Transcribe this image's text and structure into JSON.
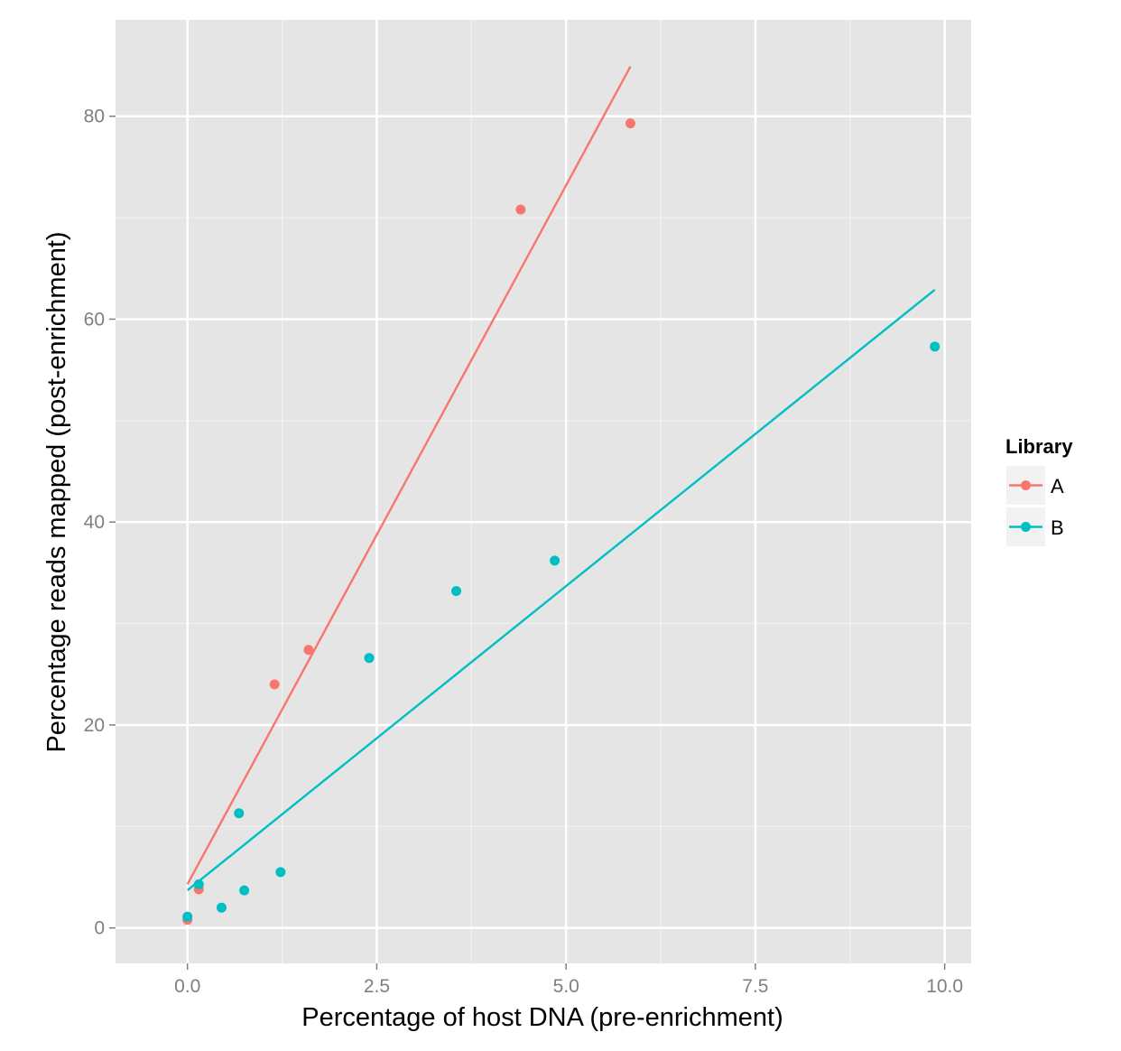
{
  "chart_data": {
    "type": "scatter",
    "title": "",
    "xlabel": "Percentage of host DNA (pre-enrichment)",
    "ylabel": "Percentage reads mapped (post-enrichment)",
    "xlim": [
      -0.95,
      10.35
    ],
    "ylim": [
      -3.5,
      89.5
    ],
    "x_ticks": [
      0.0,
      2.5,
      5.0,
      7.5,
      10.0
    ],
    "x_tick_labels": [
      "0.0",
      "2.5",
      "5.0",
      "7.5",
      "10.0"
    ],
    "y_ticks": [
      0,
      20,
      40,
      60,
      80
    ],
    "y_tick_labels": [
      "0",
      "20",
      "40",
      "60",
      "80"
    ],
    "grid": true,
    "panel_background": "#e5e5e5",
    "legend": {
      "title": "Library",
      "position": "right"
    },
    "series": [
      {
        "name": "A",
        "color": "#f8766d",
        "points": [
          {
            "x": 0.0,
            "y": 0.8
          },
          {
            "x": 0.15,
            "y": 3.8
          },
          {
            "x": 1.15,
            "y": 24.0
          },
          {
            "x": 1.6,
            "y": 27.4
          },
          {
            "x": 4.4,
            "y": 70.8
          },
          {
            "x": 5.85,
            "y": 79.3
          }
        ],
        "fit_line": {
          "x": [
            0.0,
            5.85
          ],
          "y": [
            4.3,
            84.9
          ]
        }
      },
      {
        "name": "B",
        "color": "#00bfc4",
        "points": [
          {
            "x": 0.0,
            "y": 1.1
          },
          {
            "x": 0.15,
            "y": 4.3
          },
          {
            "x": 0.45,
            "y": 2.0
          },
          {
            "x": 0.68,
            "y": 11.3
          },
          {
            "x": 0.75,
            "y": 3.7
          },
          {
            "x": 1.23,
            "y": 5.5
          },
          {
            "x": 2.4,
            "y": 26.6
          },
          {
            "x": 3.55,
            "y": 33.2
          },
          {
            "x": 4.85,
            "y": 36.2
          },
          {
            "x": 9.87,
            "y": 57.3
          }
        ],
        "fit_line": {
          "x": [
            0.0,
            9.87
          ],
          "y": [
            3.7,
            62.9
          ]
        }
      }
    ]
  }
}
